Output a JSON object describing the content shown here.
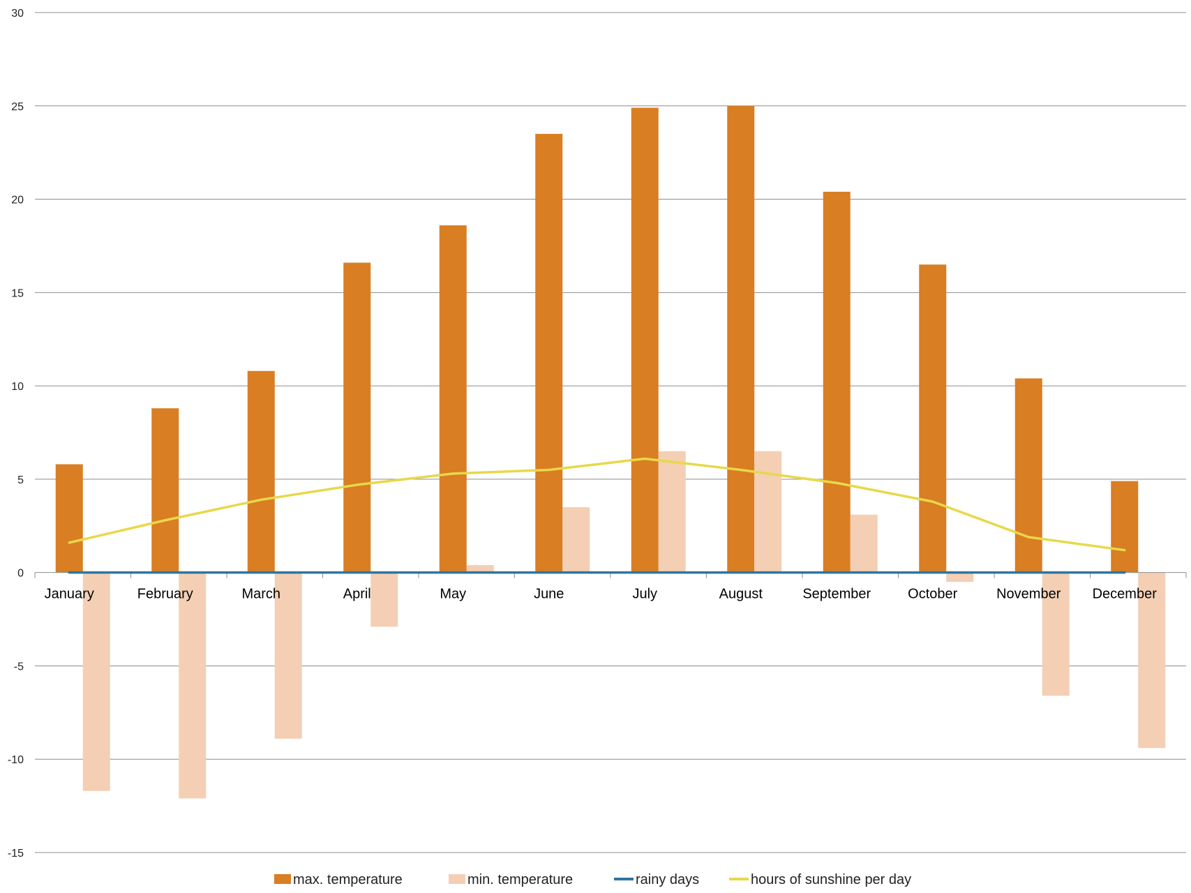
{
  "chart_data": {
    "type": "bar",
    "categories": [
      "January",
      "February",
      "March",
      "April",
      "May",
      "June",
      "July",
      "August",
      "September",
      "October",
      "November",
      "December"
    ],
    "series": [
      {
        "name": "max.  temperature",
        "kind": "bar",
        "color": "#D97E22",
        "values": [
          5.8,
          8.8,
          10.8,
          16.6,
          18.6,
          23.5,
          24.9,
          25.0,
          20.4,
          16.5,
          10.4,
          4.9
        ]
      },
      {
        "name": "min. temperature",
        "kind": "bar",
        "color": "#F4CFB4",
        "values": [
          -11.7,
          -12.1,
          -8.9,
          -2.9,
          0.4,
          3.5,
          6.5,
          6.5,
          3.1,
          -0.5,
          -6.6,
          -9.4
        ]
      },
      {
        "name": "rainy days",
        "kind": "line",
        "color": "#2E75A0",
        "values": [
          0,
          0,
          0,
          0,
          0,
          0,
          0,
          0,
          0,
          0,
          0,
          0
        ]
      },
      {
        "name": "hours of sunshine per day",
        "kind": "line",
        "color": "#E8D84A",
        "values": [
          1.6,
          2.8,
          3.9,
          4.7,
          5.3,
          5.5,
          6.1,
          5.5,
          4.8,
          3.8,
          1.9,
          1.2
        ]
      }
    ],
    "yticks": [
      "30",
      "25",
      "20",
      "15",
      "10",
      "5",
      "0",
      "-5",
      "-10",
      "-15"
    ],
    "ylim": [
      -15,
      30
    ],
    "grid": true,
    "legend": "bottom"
  }
}
